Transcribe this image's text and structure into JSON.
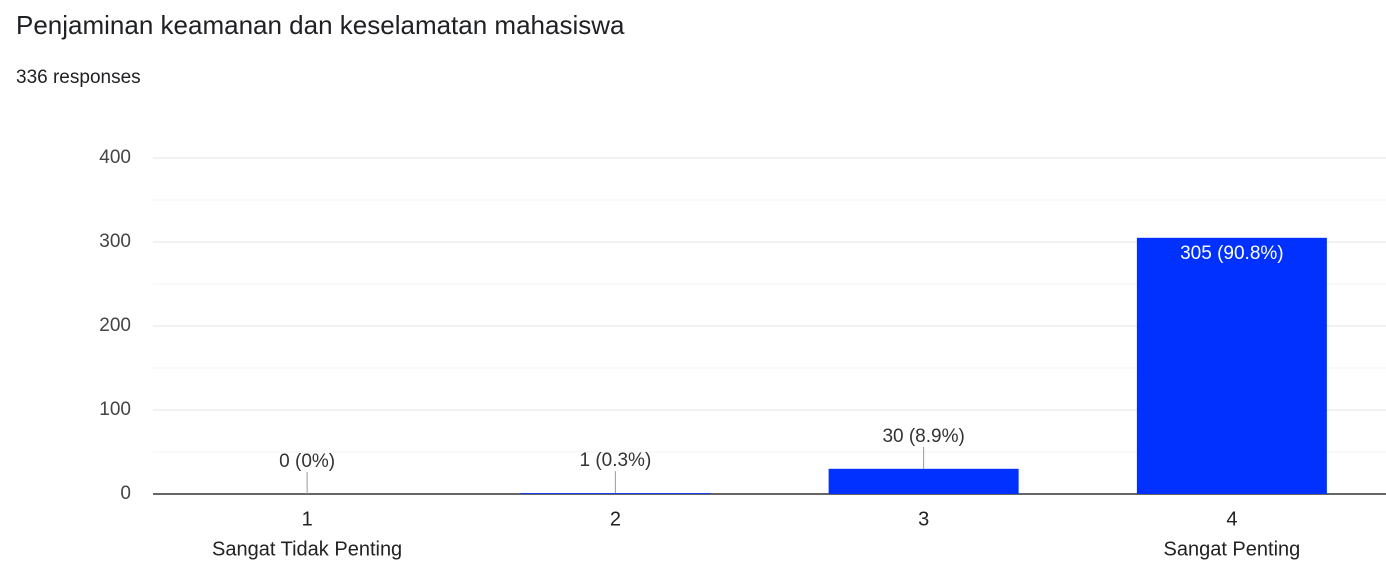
{
  "chart_data": {
    "type": "bar",
    "title": "Penjaminan keamanan dan keselamatan mahasiswa",
    "subtitle": "336 responses",
    "categories": [
      "1",
      "2",
      "3",
      "4"
    ],
    "category_sublabels": [
      "Sangat Tidak Penting",
      null,
      null,
      "Sangat Penting"
    ],
    "values": [
      0,
      1,
      30,
      305
    ],
    "value_labels": [
      "0 (0%)",
      "1 (0.3%)",
      "30 (8.9%)",
      "305 (90.8%)"
    ],
    "color": "#0031ff",
    "ylim": [
      0,
      400
    ],
    "yticks": [
      0,
      100,
      200,
      300,
      400
    ],
    "minor_yticks": [
      50,
      150,
      250,
      350
    ],
    "grid": true
  }
}
